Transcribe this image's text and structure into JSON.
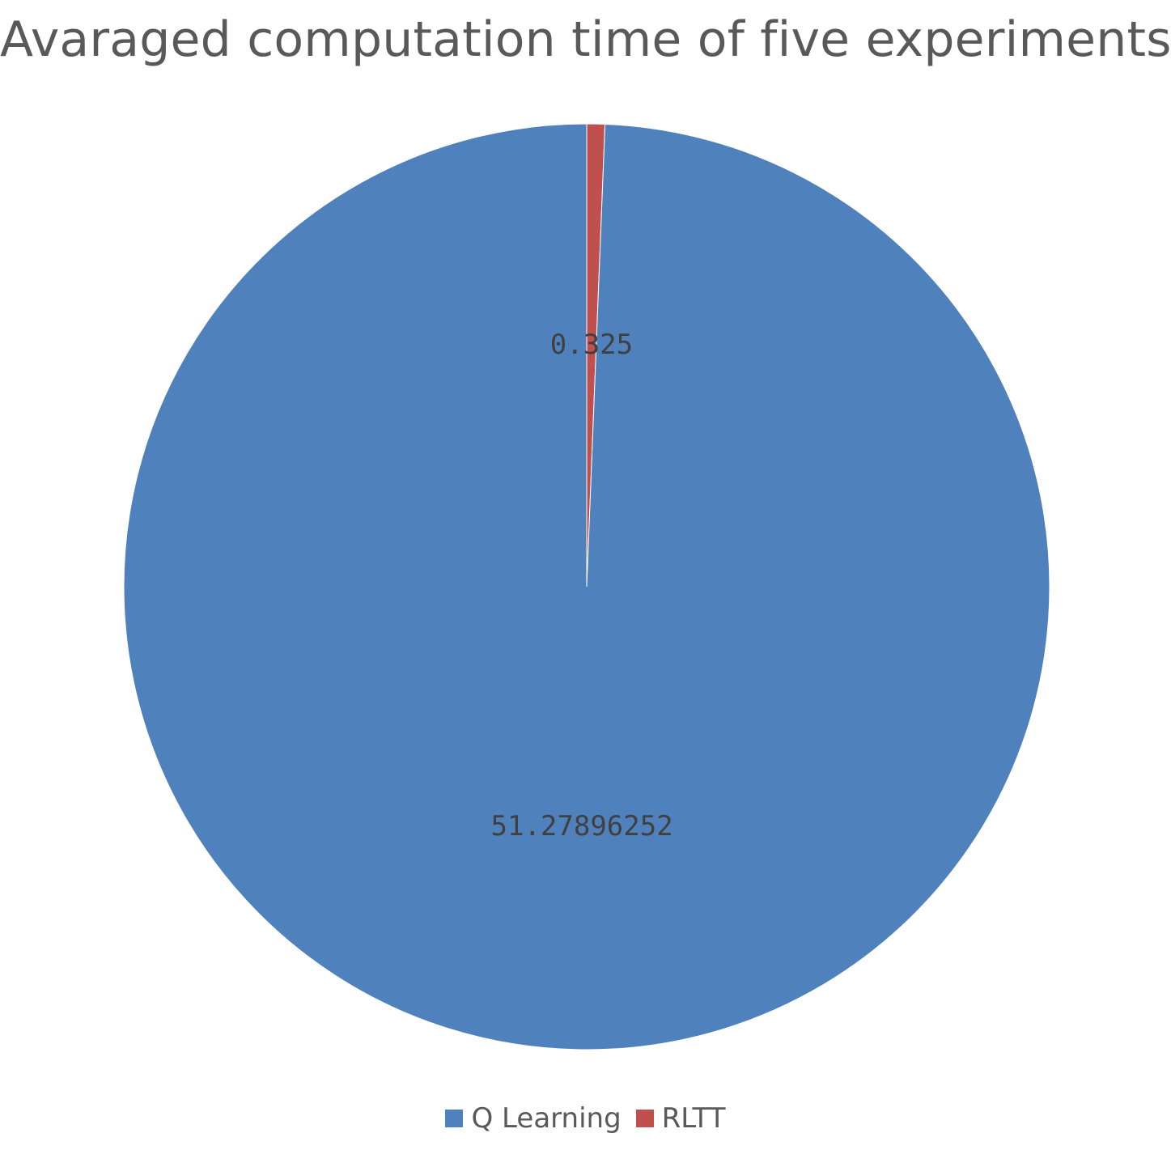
{
  "chart_data": {
    "type": "pie",
    "title": "Avaraged computation time of five experiments",
    "series": [
      {
        "categories": [
          "Q Learning",
          "RLTT"
        ],
        "values": [
          51.27896252,
          0.325
        ],
        "labels": [
          "51.27896252",
          "0.325"
        ],
        "colors": [
          "#4F81BD",
          "#C0504D"
        ]
      }
    ],
    "legend": {
      "position": "bottom",
      "entries": [
        "Q Learning",
        "RLTT"
      ]
    },
    "start_angle": "top (12 o'clock), clockwise",
    "slice_order": "RLTT first, then Q Learning"
  }
}
